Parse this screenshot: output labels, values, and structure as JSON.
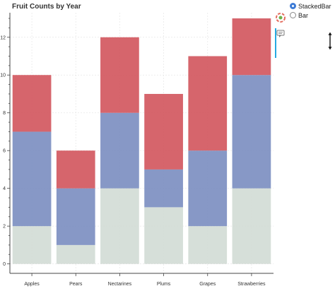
{
  "chart_data": {
    "type": "bar",
    "stacked": true,
    "title": "Fruit Counts by Year",
    "xlabel": "",
    "ylabel": "",
    "categories": [
      "Apples",
      "Pears",
      "Nectarines",
      "Plums",
      "Grapes",
      "Strawberries"
    ],
    "series": [
      {
        "values": [
          2,
          1,
          4,
          3,
          2,
          4
        ],
        "color": "#d3dcd6"
      },
      {
        "values": [
          5,
          3,
          4,
          2,
          4,
          6
        ],
        "color": "#7d8fc1"
      },
      {
        "values": [
          3,
          2,
          4,
          4,
          5,
          3
        ],
        "color": "#d3585f"
      }
    ],
    "ylim": [
      -0.5,
      13.3
    ],
    "yticks": [
      0,
      2,
      4,
      6,
      8,
      10,
      12
    ],
    "grid": true,
    "legend": "none"
  },
  "controls": {
    "radio_options": [
      {
        "label": "StackedBar",
        "checked": true
      },
      {
        "label": "Bar",
        "checked": false
      }
    ]
  },
  "toolbar": {
    "logo_icon": "bokeh-logo-icon",
    "hover_icon": "hover-tooltip-icon"
  }
}
